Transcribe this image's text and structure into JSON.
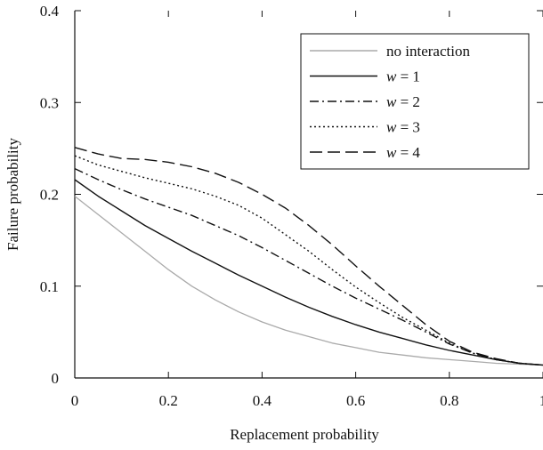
{
  "chart_data": {
    "type": "line",
    "title": "",
    "xlabel": "Replacement probability",
    "ylabel": "Failure probability",
    "xlim": [
      0,
      1
    ],
    "ylim": [
      0,
      0.4
    ],
    "x_ticks": [
      0,
      0.2,
      0.4,
      0.6,
      0.8,
      1
    ],
    "x_tick_labels": [
      "0",
      "0.2",
      "0.4",
      "0.6",
      "0.8",
      "1"
    ],
    "y_ticks": [
      0,
      0.1,
      0.2,
      0.3,
      0.4
    ],
    "y_tick_labels": [
      "0",
      "0.1",
      "0.2",
      "0.3",
      "0.4"
    ],
    "grid": false,
    "legend_position": "top-right",
    "x": [
      0,
      0.05,
      0.1,
      0.15,
      0.2,
      0.25,
      0.3,
      0.35,
      0.4,
      0.45,
      0.5,
      0.55,
      0.6,
      0.65,
      0.7,
      0.75,
      0.8,
      0.85,
      0.9,
      0.95,
      1.0
    ],
    "series": [
      {
        "name": "no interaction",
        "legend_prefix": "",
        "legend_var": "",
        "legend_suffix": "no interaction",
        "color": "#aaaaaa",
        "dash": "",
        "values": [
          0.198,
          0.178,
          0.158,
          0.138,
          0.118,
          0.1,
          0.085,
          0.072,
          0.061,
          0.052,
          0.045,
          0.038,
          0.033,
          0.028,
          0.025,
          0.022,
          0.02,
          0.018,
          0.016,
          0.015,
          0.014
        ]
      },
      {
        "name": "w = 1",
        "legend_var": "w",
        "legend_suffix": " = 1",
        "color": "#111111",
        "dash": "",
        "values": [
          0.216,
          0.198,
          0.182,
          0.166,
          0.152,
          0.138,
          0.125,
          0.112,
          0.1,
          0.088,
          0.077,
          0.067,
          0.058,
          0.05,
          0.043,
          0.036,
          0.03,
          0.025,
          0.02,
          0.016,
          0.014
        ]
      },
      {
        "name": "w = 2",
        "legend_var": "w",
        "legend_suffix": " = 2",
        "color": "#111111",
        "dash": "10,4,2,4",
        "values": [
          0.228,
          0.216,
          0.205,
          0.195,
          0.186,
          0.177,
          0.166,
          0.155,
          0.142,
          0.128,
          0.114,
          0.1,
          0.087,
          0.075,
          0.063,
          0.05,
          0.037,
          0.027,
          0.02,
          0.016,
          0.014
        ]
      },
      {
        "name": "w = 3",
        "legend_var": "w",
        "legend_suffix": " = 3",
        "color": "#111111",
        "dash": "2,3",
        "values": [
          0.242,
          0.232,
          0.225,
          0.218,
          0.212,
          0.206,
          0.198,
          0.188,
          0.174,
          0.156,
          0.138,
          0.118,
          0.099,
          0.082,
          0.066,
          0.052,
          0.038,
          0.027,
          0.02,
          0.016,
          0.014
        ]
      },
      {
        "name": "w = 4",
        "legend_var": "w",
        "legend_suffix": " = 4",
        "color": "#111111",
        "dash": "14,6",
        "values": [
          0.251,
          0.244,
          0.239,
          0.238,
          0.235,
          0.23,
          0.223,
          0.213,
          0.2,
          0.185,
          0.166,
          0.145,
          0.122,
          0.1,
          0.079,
          0.058,
          0.04,
          0.028,
          0.021,
          0.016,
          0.014
        ]
      }
    ]
  }
}
